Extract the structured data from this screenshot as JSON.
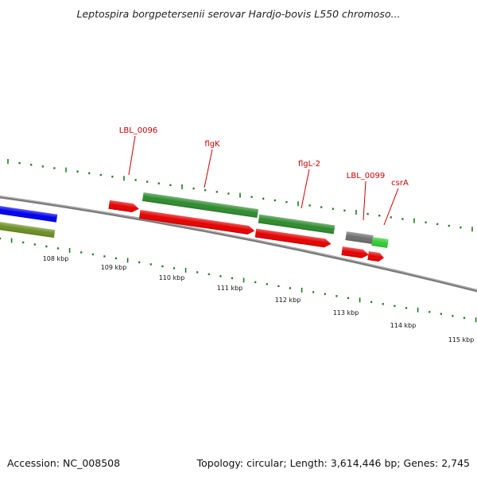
{
  "title": "Leptospira borgpetersenii serovar Hardjo-bovis L550 chromoso...",
  "accession": "Accession: NC_008508",
  "summary": "Topology: circular; Length: 3,614,446 bp; Genes: 2,745",
  "colors": {
    "backbone": "#7a7a7a",
    "tick": "#1f7a1f",
    "label": "#cc0000",
    "gene_red": "#e60000",
    "gene_green": "#2e8b2e",
    "gene_blue": "#0000ee",
    "gene_olive": "#6b8e23",
    "gene_gray": "#6e6e6e",
    "gene_lightgreen": "#33cc33"
  },
  "scale_labels": [
    "108 kbp",
    "109 kbp",
    "110 kbp",
    "111 kbp",
    "112 kbp",
    "113 kbp",
    "114 kbp",
    "115 kbp"
  ],
  "gene_labels": [
    "LBL_0096",
    "flgK",
    "flgL-2",
    "LBL_0099",
    "csrA"
  ],
  "features": [
    {
      "name": "blue-feature",
      "color": "blue"
    },
    {
      "name": "olive-feature",
      "color": "olive"
    },
    {
      "name": "LBL_0096 cds",
      "color": "red"
    },
    {
      "name": "flgK gene",
      "color": "green"
    },
    {
      "name": "flgK cds",
      "color": "red"
    },
    {
      "name": "flgL-2 gene",
      "color": "green"
    },
    {
      "name": "flgL-2 cds",
      "color": "red"
    },
    {
      "name": "LBL_0099 gene",
      "color": "gray"
    },
    {
      "name": "csrA gene",
      "color": "lightgreen"
    },
    {
      "name": "LBL_0099 cds",
      "color": "red"
    },
    {
      "name": "csrA cds",
      "color": "red"
    }
  ]
}
